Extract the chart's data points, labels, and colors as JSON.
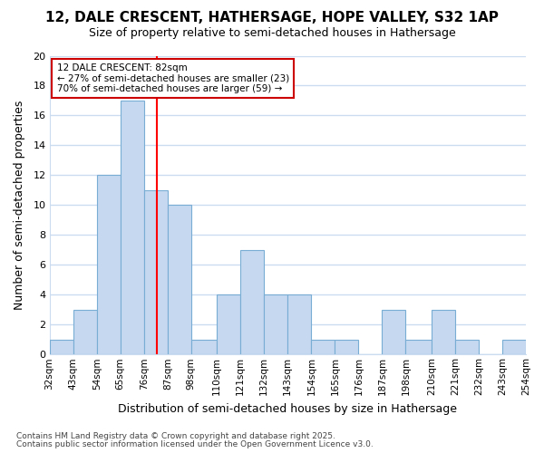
{
  "title": "12, DALE CRESCENT, HATHERSAGE, HOPE VALLEY, S32 1AP",
  "subtitle": "Size of property relative to semi-detached houses in Hathersage",
  "xlabel": "Distribution of semi-detached houses by size in Hathersage",
  "ylabel": "Number of semi-detached properties",
  "footnote1": "Contains HM Land Registry data © Crown copyright and database right 2025.",
  "footnote2": "Contains public sector information licensed under the Open Government Licence v3.0.",
  "bins": [
    32,
    43,
    54,
    65,
    76,
    87,
    98,
    110,
    121,
    132,
    143,
    154,
    165,
    176,
    187,
    198,
    210,
    221,
    232,
    243,
    254
  ],
  "counts": [
    1,
    3,
    12,
    17,
    11,
    10,
    1,
    4,
    7,
    4,
    4,
    1,
    1,
    0,
    3,
    1,
    3,
    1,
    0,
    1
  ],
  "bar_color": "#c5d8f0",
  "bar_edge_color": "#7aadd4",
  "background_color": "#ffffff",
  "grid_color": "#ccdcf0",
  "red_line_x": 82,
  "annotation_text": "12 DALE CRESCENT: 82sqm\n← 27% of semi-detached houses are smaller (23)\n70% of semi-detached houses are larger (59) →",
  "annotation_box_color": "#ffffff",
  "annotation_box_edge": "#cc0000",
  "ylim": [
    0,
    20
  ],
  "yticks": [
    0,
    2,
    4,
    6,
    8,
    10,
    12,
    14,
    16,
    18,
    20
  ],
  "tick_labels": [
    "32sqm",
    "43sqm",
    "54sqm",
    "65sqm",
    "76sqm",
    "87sqm",
    "98sqm",
    "110sqm",
    "121sqm",
    "132sqm",
    "143sqm",
    "154sqm",
    "165sqm",
    "176sqm",
    "187sqm",
    "198sqm",
    "210sqm",
    "221sqm",
    "232sqm",
    "243sqm",
    "254sqm"
  ],
  "title_fontsize": 11,
  "subtitle_fontsize": 9
}
